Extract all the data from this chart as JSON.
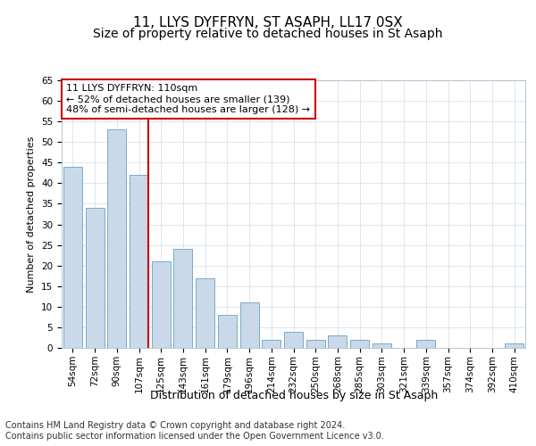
{
  "title1": "11, LLYS DYFFRYN, ST ASAPH, LL17 0SX",
  "title2": "Size of property relative to detached houses in St Asaph",
  "xlabel": "Distribution of detached houses by size in St Asaph",
  "ylabel": "Number of detached properties",
  "categories": [
    "54sqm",
    "72sqm",
    "90sqm",
    "107sqm",
    "125sqm",
    "143sqm",
    "161sqm",
    "179sqm",
    "196sqm",
    "214sqm",
    "232sqm",
    "250sqm",
    "268sqm",
    "285sqm",
    "303sqm",
    "321sqm",
    "339sqm",
    "357sqm",
    "374sqm",
    "392sqm",
    "410sqm"
  ],
  "values": [
    44,
    34,
    53,
    42,
    21,
    24,
    17,
    8,
    11,
    2,
    4,
    2,
    3,
    2,
    1,
    0,
    2,
    0,
    0,
    0,
    1
  ],
  "bar_color": "#c9d9ea",
  "bar_edge_color": "#7aaac8",
  "vline_color": "#cc0000",
  "vline_xindex": 3,
  "annotation_text": "11 LLYS DYFFRYN: 110sqm\n← 52% of detached houses are smaller (139)\n48% of semi-detached houses are larger (128) →",
  "annotation_box_color": "#ffffff",
  "annotation_box_edge": "#cc0000",
  "ylim": [
    0,
    65
  ],
  "yticks": [
    0,
    5,
    10,
    15,
    20,
    25,
    30,
    35,
    40,
    45,
    50,
    55,
    60,
    65
  ],
  "footer1": "Contains HM Land Registry data © Crown copyright and database right 2024.",
  "footer2": "Contains public sector information licensed under the Open Government Licence v3.0.",
  "bg_color": "#ffffff",
  "plot_bg_color": "#ffffff",
  "grid_color": "#d0dce8",
  "title1_fontsize": 11,
  "title2_fontsize": 10,
  "ylabel_fontsize": 8,
  "xlabel_fontsize": 9,
  "tick_fontsize": 7.5,
  "annotation_fontsize": 8,
  "footer_fontsize": 7
}
